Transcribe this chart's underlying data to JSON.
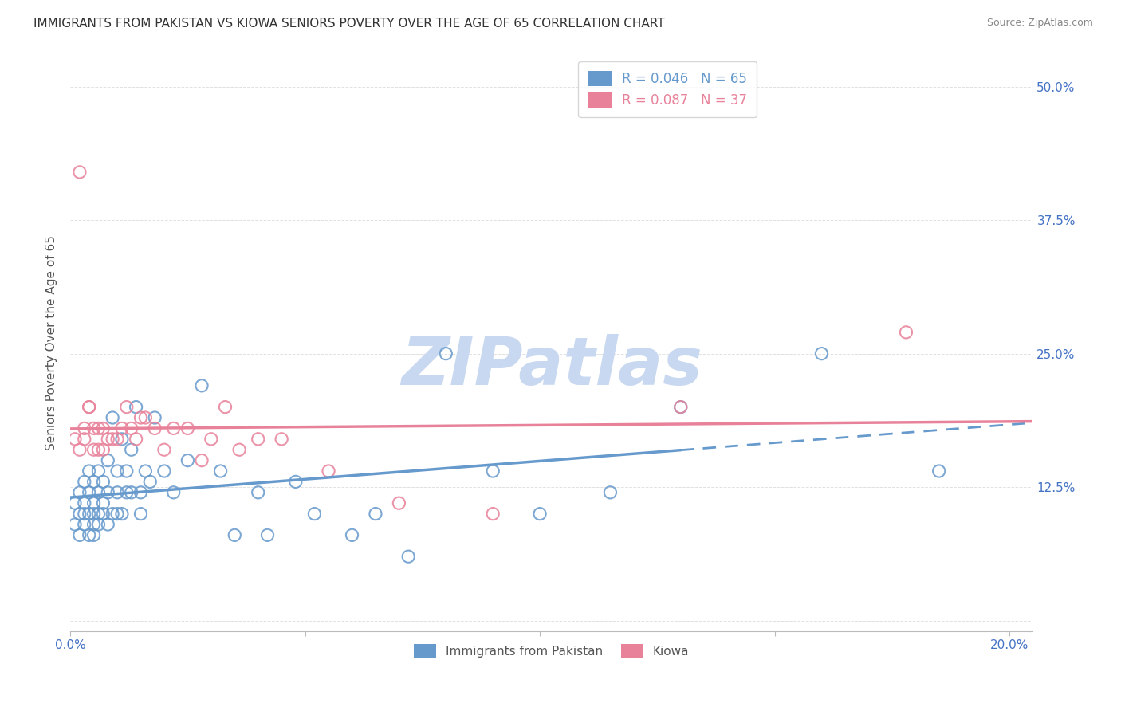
{
  "title": "IMMIGRANTS FROM PAKISTAN VS KIOWA SENIORS POVERTY OVER THE AGE OF 65 CORRELATION CHART",
  "source": "Source: ZipAtlas.com",
  "ylabel": "Seniors Poverty Over the Age of 65",
  "xlim": [
    0.0,
    0.205
  ],
  "ylim": [
    -0.01,
    0.53
  ],
  "xticks": [
    0.0,
    0.05,
    0.1,
    0.15,
    0.2
  ],
  "xtick_labels": [
    "0.0%",
    "",
    "",
    "",
    "20.0%"
  ],
  "yticks": [
    0.0,
    0.125,
    0.25,
    0.375,
    0.5
  ],
  "ytick_labels": [
    "",
    "12.5%",
    "25.0%",
    "37.5%",
    "50.0%"
  ],
  "series1_label": "Immigrants from Pakistan",
  "series1_R": 0.046,
  "series1_N": 65,
  "series1_color": "#6699cc",
  "series2_label": "Kiowa",
  "series2_R": 0.087,
  "series2_N": 37,
  "series2_color": "#e8829a",
  "background_color": "#ffffff",
  "grid_color": "#cccccc",
  "title_color": "#333333",
  "tick_color": "#4472c4",
  "watermark": "ZIPatlas",
  "watermark_color": "#c8d8f0",
  "series1_x": [
    0.001,
    0.001,
    0.002,
    0.002,
    0.002,
    0.003,
    0.003,
    0.003,
    0.003,
    0.004,
    0.004,
    0.004,
    0.004,
    0.005,
    0.005,
    0.005,
    0.005,
    0.005,
    0.006,
    0.006,
    0.006,
    0.006,
    0.007,
    0.007,
    0.007,
    0.008,
    0.008,
    0.008,
    0.009,
    0.009,
    0.01,
    0.01,
    0.01,
    0.011,
    0.011,
    0.012,
    0.012,
    0.013,
    0.013,
    0.014,
    0.015,
    0.015,
    0.016,
    0.017,
    0.018,
    0.02,
    0.022,
    0.025,
    0.028,
    0.032,
    0.035,
    0.04,
    0.042,
    0.048,
    0.052,
    0.06,
    0.065,
    0.072,
    0.08,
    0.09,
    0.1,
    0.115,
    0.13,
    0.16,
    0.185
  ],
  "series1_y": [
    0.09,
    0.11,
    0.1,
    0.12,
    0.08,
    0.09,
    0.11,
    0.13,
    0.1,
    0.08,
    0.12,
    0.1,
    0.14,
    0.09,
    0.11,
    0.13,
    0.1,
    0.08,
    0.1,
    0.12,
    0.14,
    0.09,
    0.11,
    0.13,
    0.1,
    0.12,
    0.15,
    0.09,
    0.19,
    0.1,
    0.14,
    0.12,
    0.1,
    0.17,
    0.1,
    0.14,
    0.12,
    0.16,
    0.12,
    0.2,
    0.1,
    0.12,
    0.14,
    0.13,
    0.19,
    0.14,
    0.12,
    0.15,
    0.22,
    0.14,
    0.08,
    0.12,
    0.08,
    0.13,
    0.1,
    0.08,
    0.1,
    0.06,
    0.25,
    0.14,
    0.1,
    0.12,
    0.2,
    0.25,
    0.14
  ],
  "series2_x": [
    0.001,
    0.002,
    0.002,
    0.003,
    0.003,
    0.004,
    0.004,
    0.005,
    0.005,
    0.006,
    0.006,
    0.007,
    0.007,
    0.008,
    0.009,
    0.01,
    0.011,
    0.012,
    0.013,
    0.014,
    0.015,
    0.016,
    0.018,
    0.02,
    0.022,
    0.025,
    0.028,
    0.03,
    0.033,
    0.036,
    0.04,
    0.045,
    0.055,
    0.07,
    0.09,
    0.13,
    0.178
  ],
  "series2_y": [
    0.17,
    0.16,
    0.42,
    0.17,
    0.18,
    0.2,
    0.2,
    0.18,
    0.16,
    0.16,
    0.18,
    0.18,
    0.16,
    0.17,
    0.17,
    0.17,
    0.18,
    0.2,
    0.18,
    0.17,
    0.19,
    0.19,
    0.18,
    0.16,
    0.18,
    0.18,
    0.15,
    0.17,
    0.2,
    0.16,
    0.17,
    0.17,
    0.14,
    0.11,
    0.1,
    0.2,
    0.27
  ],
  "trend1_x0": 0.0,
  "trend1_x1": 0.13,
  "trend1_dash_x0": 0.13,
  "trend1_dash_x1": 0.205,
  "trend2_x0": 0.0,
  "trend2_x1": 0.205
}
